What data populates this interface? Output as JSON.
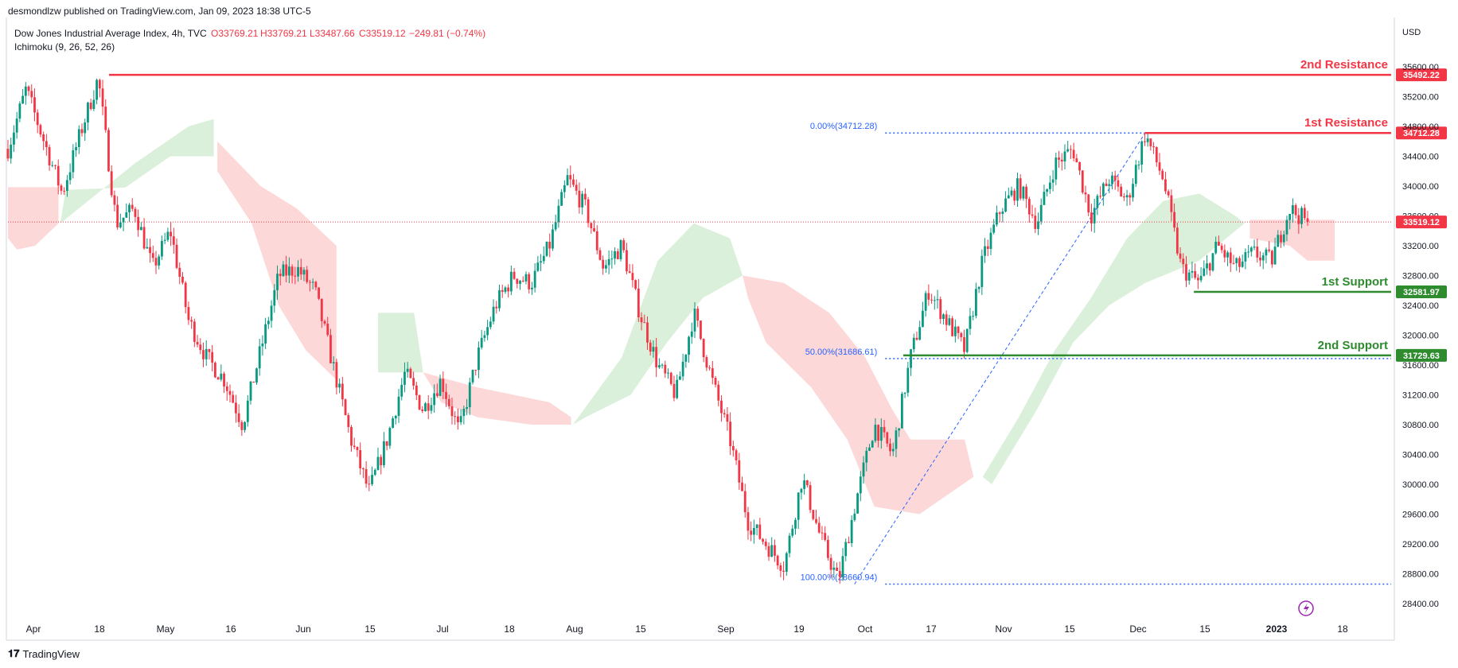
{
  "header": {
    "published_line": "desmondlzw published on TradingView.com, Jan 09, 2023 18:38 UTC-5",
    "symbol_line": "Dow Jones Industrial Average Index, 4h, TVC",
    "ohlc": {
      "open": "O33769.21",
      "high": "H33769.21",
      "low": "L33487.66",
      "close": "C33519.12",
      "change": "−249.81 (−0.74%)"
    },
    "indicator": "Ichimoku (9, 26, 52, 26)"
  },
  "footer": {
    "logo_text": "TradingView",
    "logo_mark": "𝟏𝟕"
  },
  "colors": {
    "up": "#26a69a",
    "up_candle": "#089981",
    "down": "#f23645",
    "resistance": "#f23645",
    "support": "#2e8b2e",
    "cloud_bull": "#d9efd9",
    "cloud_bear": "#fdd6d6",
    "fib": "#2962ff",
    "axis_text": "#131722"
  },
  "chart_data": {
    "type": "candlestick",
    "title": "Dow Jones Industrial Average Index, 4h",
    "currency": "USD",
    "x_ticks": [
      "Apr",
      "18",
      "May",
      "16",
      "Jun",
      "15",
      "Jul",
      "18",
      "Aug",
      "15",
      "Sep",
      "19",
      "Oct",
      "17",
      "Nov",
      "15",
      "Dec",
      "15",
      "2023",
      "18"
    ],
    "y_ticks": [
      28400,
      28800,
      29200,
      29600,
      30000,
      30400,
      30800,
      31200,
      31600,
      32000,
      32400,
      32800,
      33200,
      33600,
      34000,
      34400,
      34800,
      35200,
      35600
    ],
    "ylim": [
      28100,
      35900
    ],
    "price_path": [
      [
        0,
        34500
      ],
      [
        1,
        35300
      ],
      [
        2,
        34600
      ],
      [
        3,
        33900
      ],
      [
        4,
        34700
      ],
      [
        5,
        35450
      ],
      [
        6,
        33500
      ],
      [
        7,
        33700
      ],
      [
        8,
        32900
      ],
      [
        9,
        33400
      ],
      [
        10,
        32200
      ],
      [
        11,
        31700
      ],
      [
        12,
        31400
      ],
      [
        13,
        30800
      ],
      [
        14,
        31800
      ],
      [
        15,
        32800
      ],
      [
        16,
        32900
      ],
      [
        17,
        32600
      ],
      [
        18,
        31600
      ],
      [
        19,
        30600
      ],
      [
        20,
        29900
      ],
      [
        21,
        30600
      ],
      [
        22,
        31500
      ],
      [
        23,
        31000
      ],
      [
        24,
        31400
      ],
      [
        25,
        30700
      ],
      [
        26,
        31700
      ],
      [
        27,
        32400
      ],
      [
        28,
        32800
      ],
      [
        29,
        32700
      ],
      [
        30,
        33200
      ],
      [
        31,
        34100
      ],
      [
        32,
        33700
      ],
      [
        33,
        32900
      ],
      [
        34,
        33200
      ],
      [
        35,
        32300
      ],
      [
        36,
        31600
      ],
      [
        37,
        31200
      ],
      [
        38,
        32300
      ],
      [
        39,
        31400
      ],
      [
        40,
        30600
      ],
      [
        41,
        29500
      ],
      [
        42,
        29200
      ],
      [
        43,
        28900
      ],
      [
        44,
        30100
      ],
      [
        45,
        29300
      ],
      [
        46,
        28700
      ],
      [
        47,
        29800
      ],
      [
        48,
        30800
      ],
      [
        49,
        30400
      ],
      [
        50,
        31700
      ],
      [
        51,
        32600
      ],
      [
        52,
        32200
      ],
      [
        53,
        31800
      ],
      [
        54,
        33000
      ],
      [
        55,
        33700
      ],
      [
        56,
        34000
      ],
      [
        57,
        33500
      ],
      [
        58,
        34300
      ],
      [
        59,
        34500
      ],
      [
        60,
        33600
      ],
      [
        61,
        34100
      ],
      [
        62,
        33800
      ],
      [
        63,
        34700
      ],
      [
        64,
        34100
      ],
      [
        65,
        32900
      ],
      [
        66,
        32700
      ],
      [
        67,
        33200
      ],
      [
        68,
        32900
      ],
      [
        69,
        33100
      ],
      [
        70,
        33000
      ],
      [
        71,
        33700
      ],
      [
        72,
        33519
      ]
    ],
    "ichimoku_cloud": [
      {
        "type": "bear",
        "points": [
          [
            0,
            33985
          ],
          [
            2.8,
            33985
          ],
          [
            2.8,
            33500
          ],
          [
            1.5,
            33200
          ],
          [
            0.5,
            33150
          ],
          [
            0,
            33300
          ]
        ]
      },
      {
        "type": "bull",
        "points": [
          [
            2.9,
            33500
          ],
          [
            7,
            34300
          ],
          [
            10,
            34800
          ],
          [
            11.4,
            34900
          ],
          [
            11.4,
            34400
          ],
          [
            9,
            34400
          ],
          [
            6.5,
            33980
          ],
          [
            3.2,
            33950
          ]
        ]
      },
      {
        "type": "bear",
        "points": [
          [
            11.6,
            34600
          ],
          [
            14,
            34000
          ],
          [
            16,
            33700
          ],
          [
            18.2,
            33200
          ],
          [
            18.2,
            31400
          ],
          [
            16.5,
            31800
          ],
          [
            15,
            32400
          ],
          [
            13.5,
            33500
          ],
          [
            11.6,
            34200
          ]
        ]
      },
      {
        "type": "bull",
        "points": [
          [
            20.5,
            32300
          ],
          [
            22.5,
            32300
          ],
          [
            23,
            31500
          ],
          [
            20.5,
            31500
          ]
        ]
      },
      {
        "type": "bear",
        "points": [
          [
            23,
            31500
          ],
          [
            26,
            31300
          ],
          [
            30,
            31100
          ],
          [
            31.2,
            30900
          ],
          [
            31.2,
            30800
          ],
          [
            29,
            30800
          ],
          [
            26,
            30900
          ],
          [
            24,
            31100
          ]
        ]
      },
      {
        "type": "bull",
        "points": [
          [
            31.3,
            30800
          ],
          [
            34,
            31700
          ],
          [
            36,
            33000
          ],
          [
            38,
            33500
          ],
          [
            40,
            33300
          ],
          [
            40.7,
            32800
          ],
          [
            38.5,
            32500
          ],
          [
            36.5,
            31900
          ],
          [
            34.5,
            31200
          ],
          [
            32,
            30900
          ]
        ]
      },
      {
        "type": "bear",
        "points": [
          [
            40.7,
            32800
          ],
          [
            43,
            32700
          ],
          [
            45.5,
            32300
          ],
          [
            47.5,
            31700
          ],
          [
            49,
            31000
          ],
          [
            50,
            30600
          ],
          [
            53,
            30600
          ],
          [
            53.5,
            30100
          ],
          [
            50.5,
            29600
          ],
          [
            48,
            29700
          ],
          [
            46.5,
            30600
          ],
          [
            44.5,
            31300
          ],
          [
            42,
            31900
          ],
          [
            41,
            32500
          ]
        ]
      },
      {
        "type": "bull",
        "points": [
          [
            54,
            30100
          ],
          [
            56,
            30900
          ],
          [
            58,
            31800
          ],
          [
            60,
            32500
          ],
          [
            62,
            33300
          ],
          [
            64,
            33800
          ],
          [
            66,
            33900
          ],
          [
            68,
            33600
          ],
          [
            68.5,
            33500
          ],
          [
            66,
            33000
          ],
          [
            63,
            32700
          ],
          [
            61,
            32400
          ],
          [
            59,
            31900
          ],
          [
            57,
            31000
          ],
          [
            54.5,
            30000
          ]
        ]
      },
      {
        "type": "bear",
        "points": [
          [
            68.8,
            33550
          ],
          [
            73.5,
            33550
          ],
          [
            73.5,
            33000
          ],
          [
            72,
            33000
          ],
          [
            71,
            33200
          ],
          [
            68.8,
            33300
          ]
        ]
      }
    ],
    "levels": [
      {
        "label": "2nd Resistance",
        "price": 35492.22,
        "price_label": "35492.22",
        "kind": "resistance"
      },
      {
        "label": "1st Resistance",
        "price": 34712.28,
        "price_label": "34712.28",
        "kind": "resistance"
      },
      {
        "label": "1st Support",
        "price": 32581.97,
        "price_label": "32581.97",
        "kind": "support"
      },
      {
        "label": "2nd Support",
        "price": 31729.63,
        "price_label": "31729.63",
        "kind": "support"
      }
    ],
    "last_price": {
      "value": 33519.12,
      "label": "33519.12"
    },
    "fibonacci": [
      {
        "label": "0.00%(34712.28)",
        "price": 34712.28
      },
      {
        "label": "50.00%(31686.61)",
        "price": 31686.61
      },
      {
        "label": "100.00%(28660.94)",
        "price": 28660.94
      }
    ]
  }
}
